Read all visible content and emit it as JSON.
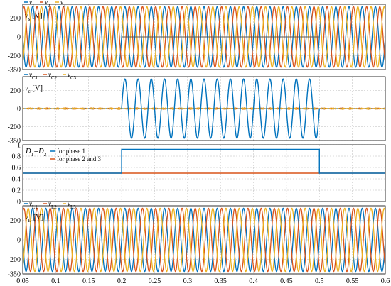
{
  "chart_data": [
    {
      "type": "line",
      "ylabel_html": "v",
      "ylabel_sub": "s",
      "ylabel_unit": " [V]",
      "ylim": [
        -350,
        350
      ],
      "yticks": [
        -350,
        -200,
        0,
        200
      ],
      "legend": [
        {
          "name": "v",
          "sub": "1",
          "color": "#0072BD"
        },
        {
          "name": "v",
          "sub": "2",
          "color": "#D95319"
        },
        {
          "name": "v",
          "sub": "3",
          "color": "#EDB120"
        }
      ],
      "signal": {
        "amplitude": 325,
        "frequency_hz": 50,
        "phase_shift_deg": [
          0,
          -120,
          120
        ]
      },
      "extra_line": {
        "x": [
          0.2,
          0.5
        ],
        "y": 0,
        "color": "#555555"
      }
    },
    {
      "type": "line",
      "ylabel_html": "v",
      "ylabel_sub": "c",
      "ylabel_unit": " [V]",
      "ylim": [
        -350,
        350
      ],
      "yticks": [
        -350,
        -200,
        0,
        200
      ],
      "legend": [
        {
          "name": "v",
          "sub": "C1",
          "color": "#0072BD"
        },
        {
          "name": "v",
          "sub": "C2",
          "color": "#D95319"
        },
        {
          "name": "v",
          "sub": "C3",
          "color": "#EDB120"
        }
      ],
      "signal": {
        "amplitude": 325,
        "frequency_hz": 50,
        "active_from": 0.2,
        "active_to": 0.5,
        "noise_amplitude": 7
      }
    },
    {
      "type": "line",
      "annotation": "D",
      "annotation_sub": "1",
      "annotation_mid": "=D",
      "annotation_sub2": "2",
      "ylim": [
        0,
        1.0
      ],
      "yticks": [
        0,
        0.2,
        0.4,
        0.6,
        0.8,
        1.0
      ],
      "legend": [
        {
          "name": "for phase 1",
          "color": "#0072BD"
        },
        {
          "name": "for phase 2 and 3",
          "color": "#D95319"
        }
      ],
      "series": [
        {
          "name": "for phase 1",
          "x": [
            0.05,
            0.2,
            0.2,
            0.5,
            0.5,
            0.6
          ],
          "y": [
            0.5,
            0.5,
            0.92,
            0.92,
            0.5,
            0.5
          ]
        },
        {
          "name": "for phase 2 and 3",
          "x": [
            0.05,
            0.6
          ],
          "y": [
            0.5,
            0.5
          ]
        }
      ]
    },
    {
      "type": "line",
      "ylabel_html": "v",
      "ylabel_sub": "L",
      "ylabel_unit": " [V]",
      "ylim": [
        -350,
        350
      ],
      "yticks": [
        -350,
        -200,
        0,
        200
      ],
      "legend": [
        {
          "name": "v",
          "sub": "L1",
          "color": "#0072BD"
        },
        {
          "name": "v",
          "sub": "L2",
          "color": "#D95319"
        },
        {
          "name": "v",
          "sub": "L3",
          "color": "#EDB120"
        }
      ],
      "signal": {
        "amplitude": 325,
        "frequency_hz": 50,
        "phase_shift_deg": [
          0,
          -120,
          120
        ]
      }
    }
  ],
  "xaxis": {
    "xlim": [
      0.05,
      0.6
    ],
    "ticks": [
      "0.05",
      "0.1",
      "0.15",
      "0.2",
      "0.25",
      "0.3",
      "0.35",
      "0.4",
      "0.45",
      "0.5",
      "0.55",
      "0.6"
    ],
    "values": [
      0.05,
      0.1,
      0.15,
      0.2,
      0.25,
      0.3,
      0.35,
      0.4,
      0.45,
      0.5,
      0.55,
      0.6
    ]
  }
}
